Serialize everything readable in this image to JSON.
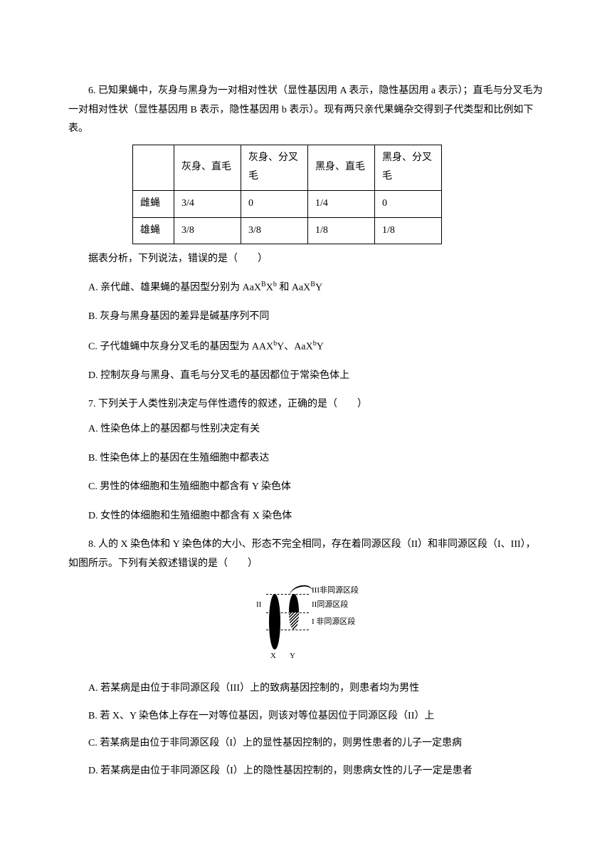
{
  "q6": {
    "intro": "6. 已知果蝇中，灰身与黑身为一对相对性状（显性基因用 A 表示，隐性基因用 a 表示）；直毛与分叉毛为一对相对性状（显性基因用 B 表示，隐性基因用 b 表示）。现有两只亲代果蝇杂交得到子代类型和比例如下表。",
    "table": {
      "headers": [
        "",
        "灰身、直毛",
        "灰身、分叉毛",
        "黑身、直毛",
        "黑身、分叉毛"
      ],
      "rows": [
        {
          "label": "雌蝇",
          "cells": [
            "3/4",
            "0",
            "1/4",
            "0"
          ]
        },
        {
          "label": "雄蝇",
          "cells": [
            "3/8",
            "3/8",
            "1/8",
            "1/8"
          ]
        }
      ]
    },
    "prompt": "据表分析，下列说法，错误的是（　　）",
    "options": {
      "a_pre": "A.  亲代雌、雄果蝇的基因型分别为 AaX",
      "a_sup1": "B",
      "a_mid1": "X",
      "a_sup2": "b",
      "a_mid2": " 和 AaX",
      "a_sup3": "B",
      "a_post": "Y",
      "b": "B.  灰身与黑身基因的差异是碱基序列不同",
      "c_pre": "C.  子代雄蝇中灰身分叉毛的基因型为 AAX",
      "c_sup1": "b",
      "c_mid": "Y、AaX",
      "c_sup2": "b",
      "c_post": "Y",
      "d": "D.  控制灰身与黑身、直毛与分叉毛的基因都位于常染色体上"
    }
  },
  "q7": {
    "intro": "7. 下列关于人类性别决定与伴性遗传的叙述，正确的是（　　）",
    "options": {
      "a": "A.  性染色体上的基因都与性别决定有关",
      "b": "B.  性染色体上的基因在生殖细胞中都表达",
      "c": "C.  男性的体细胞和生殖细胞中都含有 Y 染色体",
      "d": "D.  女性的体细胞和生殖细胞中都含有 X 染色体"
    }
  },
  "q8": {
    "intro": "8. 人的 X 染色体和 Y 染色体的大小、形态不完全相同，存在着同源区段（II）和非同源区段（I、III），如图所示。下列有关叙述错误的是（　　）",
    "labels": {
      "left": "II",
      "r1": "III非同源区段",
      "r2": "II同源区段",
      "r3": "I 非同源区段",
      "x": "X",
      "y": "Y"
    },
    "options": {
      "a": "A.  若某病是由位于非同源区段（III）上的致病基因控制的，则患者均为男性",
      "b": "B.  若 X、Y 染色体上存在一对等位基因，则该对等位基因位于同源区段（II）上",
      "c": "C.  若某病是由位于非同源区段（I）上的显性基因控制的，则男性患者的儿子一定患病",
      "d": "D.  若某病是由位于非同源区段（I）上的隐性基因控制的，则患病女性的儿子一定是患者"
    }
  }
}
